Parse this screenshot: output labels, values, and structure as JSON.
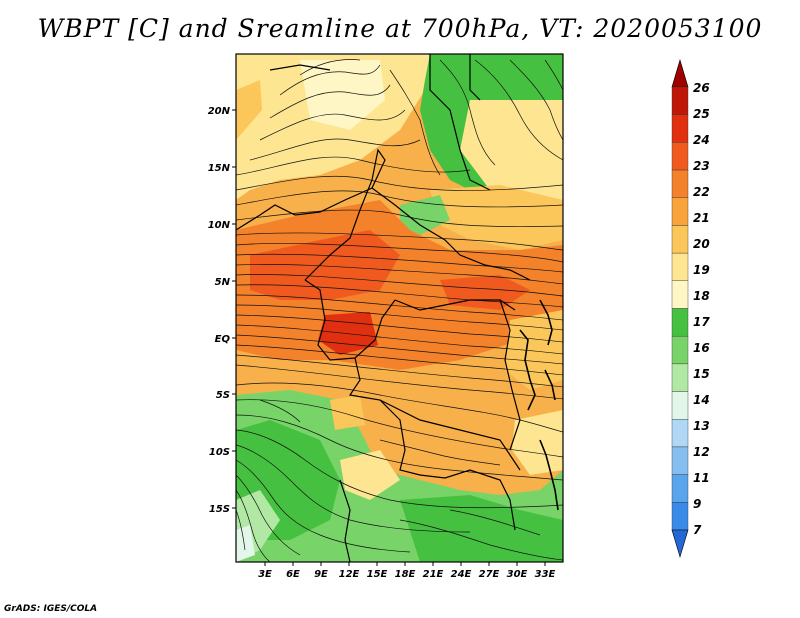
{
  "title": "WBPT [C] and Sreamline at 700hPa, VT: 2020053100",
  "credit": "GrADS: IGES/COLA",
  "map": {
    "lat_labels": [
      "20N",
      "15N",
      "10N",
      "5N",
      "EQ",
      "5S",
      "10S",
      "15S"
    ],
    "lon_labels": [
      "3E",
      "6E",
      "9E",
      "12E",
      "15E",
      "18E",
      "21E",
      "24E",
      "27E",
      "30E",
      "33E"
    ],
    "lat_values": [
      20,
      15,
      10,
      5,
      0,
      -5,
      -10,
      -15
    ],
    "lon_values": [
      3,
      6,
      9,
      12,
      15,
      18,
      21,
      24,
      27,
      30,
      33
    ]
  },
  "colorbar": {
    "labels": [
      "26",
      "25",
      "24",
      "23",
      "22",
      "21",
      "20",
      "19",
      "18",
      "17",
      "16",
      "15",
      "14",
      "13",
      "12",
      "11",
      "9",
      "7"
    ],
    "colors": [
      "#a00000",
      "#c01808",
      "#e03010",
      "#f05a1e",
      "#f4822a",
      "#f8a43a",
      "#fcc75a",
      "#fde592",
      "#fef6c4",
      "#46c040",
      "#78d468",
      "#b0e8a4",
      "#e2f6ea",
      "#b0d8f4",
      "#86bef0",
      "#5aa4ec",
      "#3a8ae8",
      "#2468d8"
    ]
  }
}
